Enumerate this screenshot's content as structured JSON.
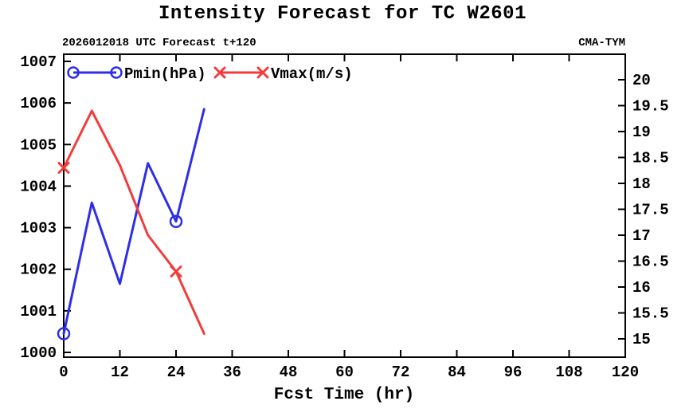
{
  "title": "Intensity Forecast for TC W2601",
  "header": {
    "left": "2026012018 UTC Forecast t+120",
    "right": "CMA-TYM"
  },
  "colors": {
    "pmin": "#2e2ee8",
    "vmax": "#f43b3b",
    "axis": "#000000"
  },
  "chart_data": {
    "type": "line",
    "title": "Intensity Forecast for TC W2601",
    "xlabel": "Fcst Time (hr)",
    "x": [
      0,
      6,
      12,
      18,
      24,
      30
    ],
    "series": [
      {
        "name": "Pmin(hPa)",
        "axis": "left",
        "color": "#2e2ee8",
        "marker": "circle",
        "marker_x": [
          0,
          24
        ],
        "values": [
          1000.45,
          1003.6,
          1001.65,
          1004.55,
          1003.15,
          1005.85
        ]
      },
      {
        "name": "Vmax(m/s)",
        "axis": "right",
        "color": "#f43b3b",
        "marker": "x",
        "marker_x": [
          0,
          24
        ],
        "values": [
          18.3,
          19.4,
          18.35,
          17.0,
          16.3,
          15.1
        ]
      }
    ],
    "x_ticks": [
      0,
      12,
      24,
      36,
      48,
      60,
      72,
      84,
      96,
      108,
      120
    ],
    "xlim": [
      0,
      120
    ],
    "y_left": {
      "label": "Pmin(hPa)",
      "min": 1000,
      "max": 1007,
      "ticks": [
        1000,
        1001,
        1002,
        1003,
        1004,
        1005,
        1006,
        1007
      ]
    },
    "y_right": {
      "label": "Vmax(m/s)",
      "min": 15,
      "max": 20,
      "ticks": [
        15,
        15.5,
        16,
        16.5,
        17,
        17.5,
        18,
        18.5,
        19,
        19.5,
        20
      ]
    },
    "grid": false,
    "legend_position": "top-left-inside"
  }
}
